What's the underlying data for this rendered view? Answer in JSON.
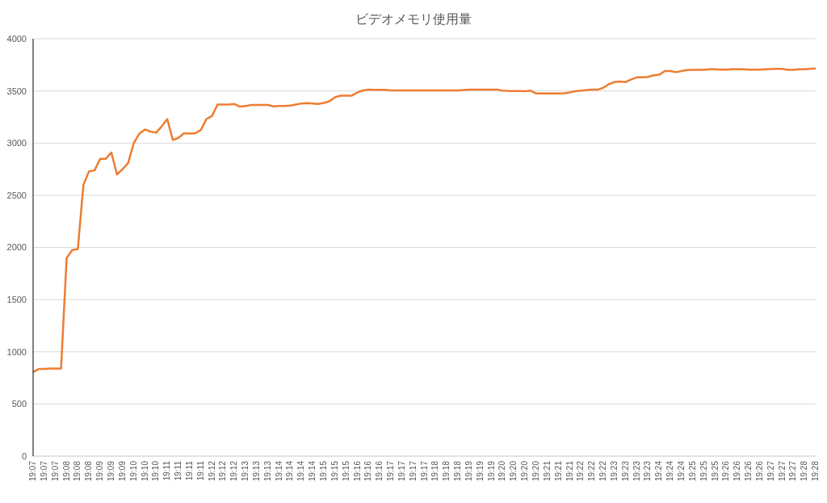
{
  "chart_data": {
    "type": "line",
    "title": "ビデオメモリ使用量",
    "categories": [
      "19:07",
      null,
      "19:07",
      null,
      "19:07",
      null,
      "19:08",
      null,
      "19:08",
      null,
      "19:08",
      null,
      "19:09",
      null,
      "19:09",
      null,
      "19:09",
      null,
      "19:10",
      null,
      "19:10",
      null,
      "19:10",
      null,
      "19:11",
      null,
      "19:11",
      null,
      "19:11",
      null,
      "19:11",
      null,
      "19:12",
      null,
      "19:12",
      null,
      "19:12",
      null,
      "19:13",
      null,
      "19:13",
      null,
      "19:13",
      null,
      "19:14",
      null,
      "19:14",
      null,
      "19:14",
      null,
      "19:14",
      null,
      "19:15",
      null,
      "19:15",
      null,
      "19:15",
      null,
      "19:16",
      null,
      "19:16",
      null,
      "19:16",
      null,
      "19:17",
      null,
      "19:17",
      null,
      "19:17",
      null,
      "19:17",
      null,
      "19:18",
      null,
      "19:18",
      null,
      "19:18",
      null,
      "19:19",
      null,
      "19:19",
      null,
      "19:19",
      null,
      "19:20",
      null,
      "19:20",
      null,
      "19:20",
      null,
      "19:20",
      null,
      "19:21",
      null,
      "19:21",
      null,
      "19:21",
      null,
      "19:22",
      null,
      "19:22",
      null,
      "19:22",
      null,
      "19:23",
      null,
      "19:23",
      null,
      "19:23",
      null,
      "19:23",
      null,
      "19:24",
      null,
      "19:24",
      null,
      "19:24",
      null,
      "19:25",
      null,
      "19:25",
      null,
      "19:25",
      null,
      "19:26",
      null,
      "19:26",
      null,
      "19:26",
      null,
      "19:26",
      null,
      "19:27",
      null,
      "19:27",
      null,
      "19:27",
      null,
      "19:28",
      null,
      "19:28"
    ],
    "series": [
      {
        "color": "#ed7d31",
        "values": [
          805,
          835,
          835,
          840,
          840,
          840,
          1900,
          1975,
          1985,
          2600,
          2730,
          2740,
          2850,
          2850,
          2910,
          2700,
          2750,
          2810,
          3000,
          3090,
          3130,
          3110,
          3100,
          3160,
          3230,
          3030,
          3050,
          3095,
          3090,
          3095,
          3125,
          3230,
          3260,
          3370,
          3370,
          3370,
          3375,
          3350,
          3355,
          3365,
          3365,
          3365,
          3365,
          3352,
          3355,
          3355,
          3360,
          3370,
          3380,
          3383,
          3380,
          3375,
          3385,
          3400,
          3440,
          3455,
          3455,
          3455,
          3485,
          3505,
          3512,
          3510,
          3510,
          3510,
          3505,
          3505,
          3505,
          3505,
          3505,
          3505,
          3505,
          3505,
          3505,
          3505,
          3505,
          3505,
          3505,
          3508,
          3512,
          3512,
          3512,
          3512,
          3512,
          3512,
          3502,
          3500,
          3500,
          3500,
          3498,
          3502,
          3475,
          3475,
          3475,
          3475,
          3475,
          3478,
          3485,
          3498,
          3502,
          3508,
          3512,
          3512,
          3530,
          3565,
          3585,
          3590,
          3585,
          3610,
          3630,
          3630,
          3635,
          3650,
          3655,
          3690,
          3690,
          3680,
          3690,
          3700,
          3702,
          3702,
          3702,
          3708,
          3708,
          3705,
          3705,
          3708,
          3708,
          3708,
          3705,
          3705,
          3705,
          3708,
          3710,
          3712,
          3712,
          3702,
          3702,
          3708,
          3708,
          3712,
          3715
        ]
      }
    ],
    "ylim": [
      0,
      4000
    ],
    "yticks": [
      0,
      500,
      1000,
      1500,
      2000,
      2500,
      3000,
      3500,
      4000
    ],
    "grid": "y"
  }
}
